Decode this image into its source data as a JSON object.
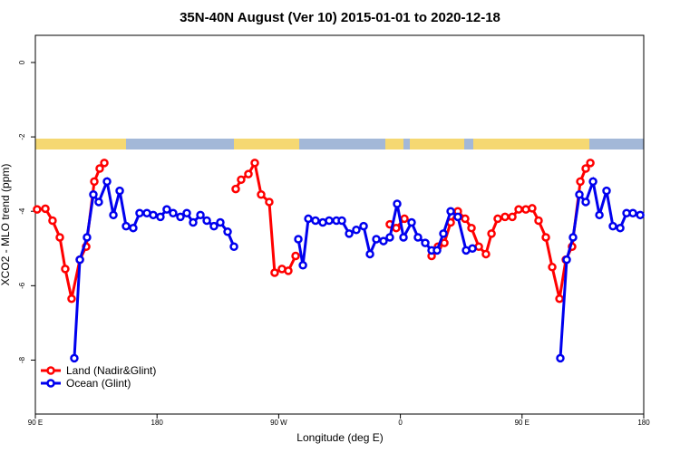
{
  "chart_data": {
    "type": "line",
    "title": "35N-40N August (Ver 10)   2015-01-01 to 2020-12-18",
    "x_label": "Longitude (deg E)",
    "y_label": "XCO2 - MLO trend (ppm)",
    "xlim": [
      90,
      540
    ],
    "ylim": [
      -9.45,
      0.73
    ],
    "xticks": [
      {
        "value": 90,
        "label": "90 E"
      },
      {
        "value": 180,
        "label": "180"
      },
      {
        "value": 270,
        "label": "90 W"
      },
      {
        "value": 360,
        "label": "0"
      },
      {
        "value": 450,
        "label": "90 E"
      },
      {
        "value": 540,
        "label": "180"
      }
    ],
    "yticks": [
      0,
      -2,
      -4,
      -6,
      -8
    ],
    "legend": "bottom-left",
    "series": [
      {
        "name": "Land (Nadir&Glint)",
        "color": "#ff0000",
        "x": [
          91.3,
          97.4,
          102.7,
          108.1,
          112.1,
          116.8,
          122.9,
          127.6,
          133.6,
          137.6,
          141,
          null,
          238.2,
          242.2,
          247.6,
          252.3,
          257,
          263,
          267,
          272.4,
          277.1,
          282.5,
          null,
          352.2,
          356.9,
          363,
          null,
          383.1,
          387.8,
          392.5,
          397.2,
          402.5,
          407.9,
          412.6,
          418,
          423.3,
          427.4,
          432,
          437.4,
          442.8,
          447.5,
          452.8,
          457.5,
          462.2,
          467.6,
          472.3,
          477.7,
          482.4,
          487,
          493.1,
          497.1,
          500.5
        ],
        "values": [
          -3.95,
          -3.93,
          -4.25,
          -4.7,
          -5.55,
          -6.35,
          -5.3,
          -4.95,
          -3.2,
          -2.85,
          -2.7,
          null,
          -3.4,
          -3.15,
          -3.0,
          -2.7,
          -3.55,
          -3.75,
          -5.65,
          -5.55,
          -5.6,
          -5.2,
          null,
          -4.35,
          -4.45,
          -4.2,
          null,
          -5.2,
          -4.95,
          -4.85,
          -4.3,
          -4.0,
          -4.2,
          -4.45,
          -4.95,
          -5.15,
          -4.6,
          -4.2,
          -4.15,
          -4.15,
          -3.95,
          -3.95,
          -3.92,
          -4.25,
          -4.7,
          -5.5,
          -6.35,
          -5.3,
          -4.95,
          -3.2,
          -2.85,
          -2.7
        ]
      },
      {
        "name": "Ocean (Glint)",
        "color": "#0000ee",
        "x": [
          118.8,
          122.9,
          128.2,
          132.9,
          136.9,
          143,
          147.7,
          152.4,
          157.1,
          162.4,
          167.1,
          172.5,
          177.2,
          182.5,
          187.2,
          191.9,
          197.3,
          202,
          206.7,
          212.1,
          216.8,
          222.1,
          226.8,
          232.2,
          236.9,
          null,
          284.5,
          287.9,
          291.9,
          297.2,
          302.6,
          307.3,
          312.7,
          316.7,
          322.1,
          327.4,
          332.8,
          337.5,
          342.2,
          347.5,
          352.2,
          357.6,
          362.3,
          368.3,
          373,
          378.4,
          383.1,
          387.1,
          391.8,
          397.2,
          402.5,
          408.6,
          413.3,
          null,
          478.3,
          483,
          487.7,
          492.4,
          497.1,
          502.5,
          507.2,
          512.5,
          517.2,
          522.6,
          527.3,
          532,
          537.4
        ],
        "values": [
          -7.95,
          -5.3,
          -4.7,
          -3.55,
          -3.75,
          -3.2,
          -4.1,
          -3.45,
          -4.4,
          -4.45,
          -4.05,
          -4.05,
          -4.1,
          -4.15,
          -3.95,
          -4.05,
          -4.15,
          -4.05,
          -4.3,
          -4.1,
          -4.25,
          -4.4,
          -4.3,
          -4.55,
          -4.95,
          null,
          -4.75,
          -5.45,
          -4.2,
          -4.25,
          -4.3,
          -4.25,
          -4.25,
          -4.25,
          -4.6,
          -4.5,
          -4.4,
          -5.15,
          -4.75,
          -4.8,
          -4.7,
          -3.8,
          -4.7,
          -4.3,
          -4.7,
          -4.85,
          -5.05,
          -5.05,
          -4.6,
          -4.0,
          -4.15,
          -5.05,
          -5.0,
          null,
          -7.95,
          -5.3,
          -4.7,
          -3.55,
          -3.75,
          -3.2,
          -4.1,
          -3.45,
          -4.4,
          -4.45,
          -4.05,
          -4.05,
          -4.1
        ]
      }
    ]
  }
}
